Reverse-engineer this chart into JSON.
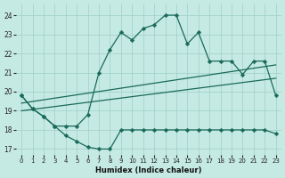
{
  "xlabel": "Humidex (Indice chaleur)",
  "background_color": "#c5eae3",
  "grid_color": "#9ecfc5",
  "line_color": "#1a6a5a",
  "xlim": [
    -0.5,
    23.5
  ],
  "ylim": [
    16.7,
    24.6
  ],
  "yticks": [
    17,
    18,
    19,
    20,
    21,
    22,
    23,
    24
  ],
  "xticks": [
    0,
    1,
    2,
    3,
    4,
    5,
    6,
    7,
    8,
    9,
    10,
    11,
    12,
    13,
    14,
    15,
    16,
    17,
    18,
    19,
    20,
    21,
    22,
    23
  ],
  "series": [
    {
      "x": [
        0,
        1,
        2,
        3,
        4,
        5,
        6,
        7,
        8,
        9,
        10,
        11,
        12,
        13,
        14,
        15,
        16,
        17,
        18,
        19,
        20,
        21,
        22,
        23
      ],
      "y": [
        19.8,
        19.1,
        18.7,
        18.2,
        18.2,
        18.2,
        18.8,
        21.0,
        22.2,
        23.1,
        22.7,
        23.3,
        23.5,
        24.0,
        24.0,
        22.5,
        23.1,
        21.6,
        21.6,
        21.6,
        20.9,
        21.6,
        21.6,
        19.8
      ],
      "has_markers": true
    },
    {
      "x": [
        0,
        1,
        2,
        3,
        4,
        5,
        6,
        7,
        8,
        9,
        10,
        11,
        12,
        13,
        14,
        15,
        16,
        17,
        18,
        19,
        20,
        21,
        22,
        23
      ],
      "y": [
        19.8,
        19.1,
        18.7,
        18.2,
        17.7,
        17.4,
        17.1,
        17.0,
        17.0,
        18.0,
        18.0,
        18.0,
        18.0,
        18.0,
        18.0,
        18.0,
        18.0,
        18.0,
        18.0,
        18.0,
        18.0,
        18.0,
        18.0,
        17.8
      ],
      "has_markers": true
    },
    {
      "x": [
        0,
        23
      ],
      "y": [
        19.0,
        20.7
      ],
      "has_markers": false
    },
    {
      "x": [
        0,
        23
      ],
      "y": [
        19.4,
        21.4
      ],
      "has_markers": false
    }
  ],
  "markersize": 2.5,
  "linewidth": 0.9
}
